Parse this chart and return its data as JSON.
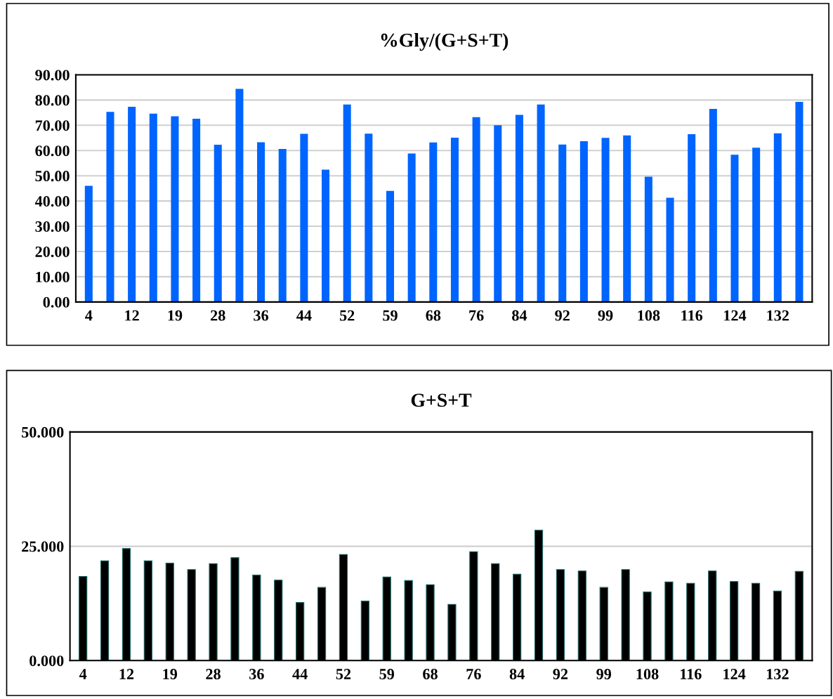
{
  "chart_data": [
    {
      "type": "bar",
      "title": "%Gly/(G+S+T)",
      "color": "#0064ff",
      "categories": [
        "4",
        null,
        "12",
        null,
        "19",
        null,
        "28",
        null,
        "36",
        null,
        "44",
        null,
        "52",
        null,
        "59",
        null,
        "68",
        null,
        "76",
        null,
        "84",
        null,
        "92",
        null,
        "99",
        null,
        "108",
        null,
        "116",
        null,
        "124",
        null,
        "132",
        null
      ],
      "values": [
        46,
        75.3,
        77.3,
        74.6,
        73.6,
        72.6,
        62.3,
        84.4,
        63.3,
        60.6,
        66.6,
        52.4,
        78.2,
        66.7,
        44,
        58.8,
        63.2,
        65.1,
        73.2,
        70,
        74.1,
        78.2,
        62.4,
        63.7,
        65,
        66,
        49.6,
        41.3,
        66.5,
        76.5,
        58.3,
        61.1,
        66.8,
        79.3
      ],
      "ylim": [
        0,
        90
      ],
      "yticks": [
        {
          "value": 0,
          "label": "0.00"
        },
        {
          "value": 10,
          "label": "10.00"
        },
        {
          "value": 20,
          "label": "20.00"
        },
        {
          "value": 30,
          "label": "30.00"
        },
        {
          "value": 40,
          "label": "40.00"
        },
        {
          "value": 50,
          "label": "50.00"
        },
        {
          "value": 60,
          "label": "60.00"
        },
        {
          "value": 70,
          "label": "70.00"
        },
        {
          "value": 80,
          "label": "80.00"
        },
        {
          "value": 90,
          "label": "90.00"
        }
      ],
      "grid": "y"
    },
    {
      "type": "bar",
      "title": "G+S+T",
      "color": "#000000",
      "categories": [
        "4",
        null,
        "12",
        null,
        "19",
        null,
        "28",
        null,
        "36",
        null,
        "44",
        null,
        "52",
        null,
        "59",
        null,
        "68",
        null,
        "76",
        null,
        "84",
        null,
        "92",
        null,
        "99",
        null,
        "108",
        null,
        "116",
        null,
        "124",
        null,
        "132",
        null
      ],
      "values": [
        18.4,
        21.8,
        24.5,
        21.8,
        21.3,
        19.9,
        21.2,
        22.5,
        18.7,
        17.6,
        12.7,
        16.0,
        23.2,
        13.0,
        18.3,
        17.5,
        16.6,
        12.3,
        23.8,
        21.2,
        18.9,
        28.5,
        19.9,
        19.6,
        16.0,
        19.9,
        15.0,
        17.2,
        16.9,
        19.6,
        17.3,
        16.9,
        15.2,
        19.5
      ],
      "ylim": [
        0,
        50
      ],
      "yticks": [
        {
          "value": 0,
          "label": "0.000"
        },
        {
          "value": 25,
          "label": "25.000"
        },
        {
          "value": 50,
          "label": "50.000"
        }
      ],
      "grid": "y"
    }
  ]
}
